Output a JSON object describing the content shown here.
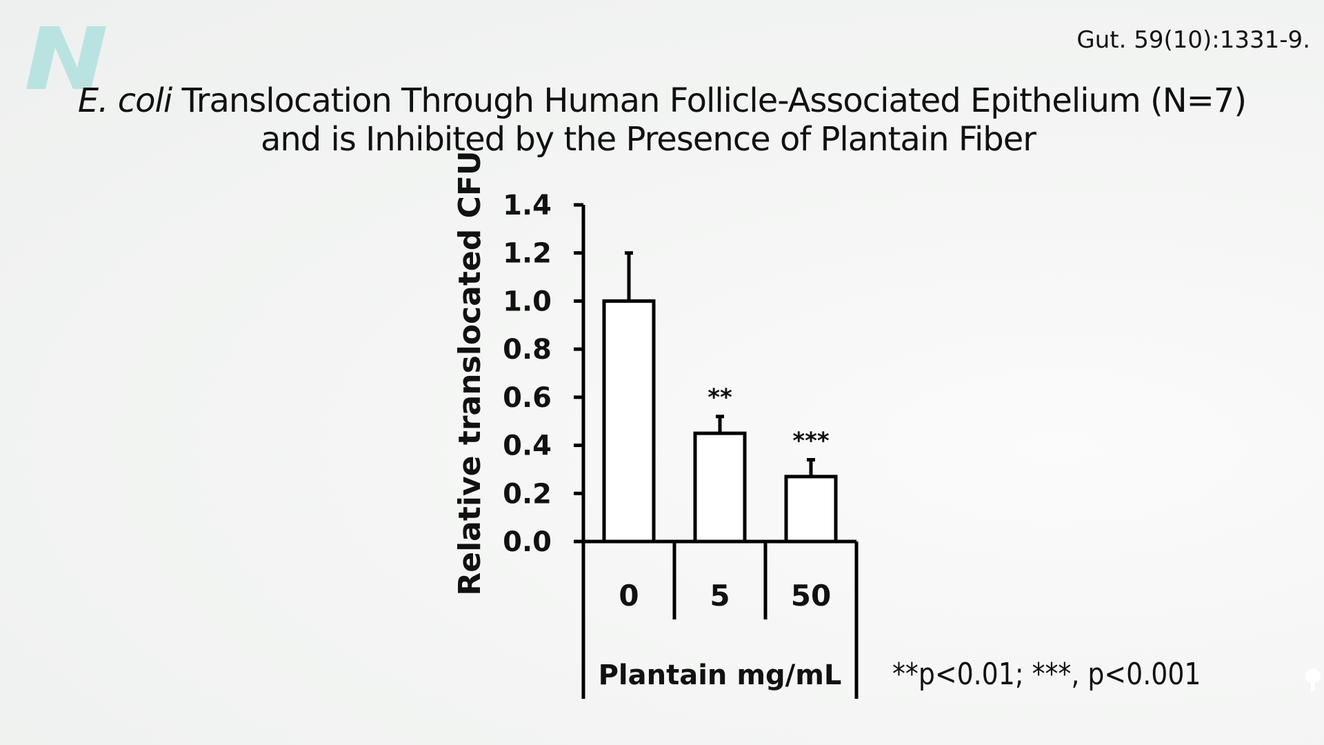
{
  "brand": {
    "logo_icon": "n-logo-icon",
    "logo_color": "#b9e3e1"
  },
  "citation": "Gut. 59(10):1331-9.",
  "title": {
    "line1_italic": "E. coli",
    "line1_rest": " Translocation Through Human Follicle-Associated Epithelium (N=7)",
    "line2": "and is Inhibited by the Presence of Plantain Fiber"
  },
  "chart_data": {
    "type": "bar",
    "categories": [
      "0",
      "5",
      "50"
    ],
    "values": [
      1.0,
      0.45,
      0.27
    ],
    "error_upper": [
      1.2,
      0.52,
      0.34
    ],
    "significance": [
      "",
      "**",
      "***"
    ],
    "ylabel": "Relative translocated CFU",
    "xlabel": "Plantain mg/mL",
    "ylim": [
      0,
      1.4
    ],
    "yticks": [
      "0.0",
      "0.2",
      "0.4",
      "0.6",
      "0.8",
      "1.0",
      "1.2",
      "1.4"
    ],
    "grid": false,
    "bar_fill": "#ffffff",
    "stroke": "#000000"
  },
  "footnote": "**p<0.01; ***, p<0.001"
}
